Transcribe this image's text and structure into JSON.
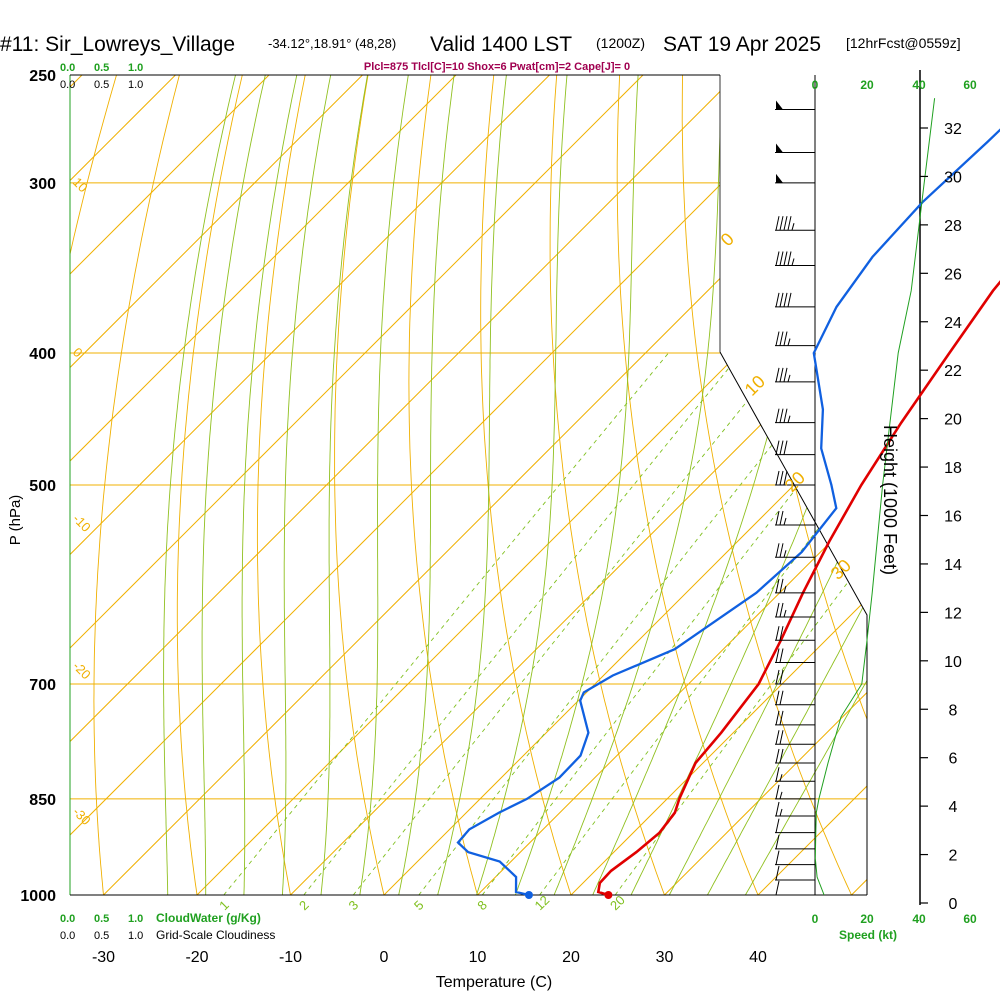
{
  "header": {
    "station": "#11: Sir_Lowreys_Village",
    "coords": "-34.12°,18.91° (48,28)",
    "valid": "Valid 1400 LST",
    "zulu": "(1200Z)",
    "date": "SAT 19 Apr 2025",
    "fcst": "[12hrFcst@0559z]",
    "params": "Plcl=875 Tlcl[C]=10 Shox=6 Pwat[cm]=2 Cape[J]= 0"
  },
  "cloud_top": {
    "v0": "0.0",
    "v1": "0.5",
    "v2": "1.0"
  },
  "cloud_top2": {
    "v0": "0.0",
    "v1": "0.5",
    "v2": "1.0"
  },
  "cloud_bottom": {
    "v0": "0.0",
    "v1": "0.5",
    "v2": "1.0",
    "label": "CloudWater (g/Kg)"
  },
  "cloud_bottom2": {
    "v0": "0.0",
    "v1": "0.5",
    "v2": "1.0",
    "label": "Grid-Scale Cloudiness"
  },
  "speed": {
    "ticks": [
      "0",
      "20",
      "40",
      "60"
    ],
    "label": "Speed (kt)"
  },
  "colors": {
    "temperature": "#e00000",
    "dewpoint": "#1060e0",
    "isobar": "#f0b000",
    "dry_adiabat": "#f0b000",
    "moist_adiabat": "#90c020",
    "mixing_ratio": "#80c020",
    "cloud": "#20a020",
    "title_params": "#a00050"
  },
  "chart_data": {
    "type": "skew-t",
    "xlabel": "Temperature (C)",
    "ylabel": "P (hPa)",
    "y2label": "Height (1000 Feet)",
    "xticks": [
      "-30",
      "-20",
      "-10",
      "0",
      "10",
      "20",
      "30",
      "40"
    ],
    "pressure_ticks": [
      "250",
      "300",
      "400",
      "500",
      "700",
      "850",
      "1000"
    ],
    "height_ticks": [
      "0",
      "2",
      "4",
      "6",
      "8",
      "10",
      "12",
      "14",
      "16",
      "18",
      "20",
      "22",
      "24",
      "26",
      "28",
      "30",
      "32"
    ],
    "dry_adiabat_labels": [
      {
        "text": "10",
        "p": 300
      },
      {
        "text": "0",
        "p": 400
      },
      {
        "text": "-10",
        "p": 530
      },
      {
        "text": "-20",
        "p": 680
      },
      {
        "text": "-30",
        "p": 870
      }
    ],
    "moist_adiabat_labels": [
      {
        "text": "0",
        "p": 330
      },
      {
        "text": "10",
        "p": 425
      },
      {
        "text": "20",
        "p": 500
      },
      {
        "text": "30",
        "p": 580
      }
    ],
    "mixing_ratio_labels": [
      "1",
      "2",
      "3",
      "5",
      "8",
      "12",
      "20"
    ],
    "temperature": [
      {
        "p": 1000,
        "t": 24.0
      },
      {
        "p": 995,
        "t": 22.6
      },
      {
        "p": 980,
        "t": 21.8
      },
      {
        "p": 960,
        "t": 21.7
      },
      {
        "p": 930,
        "t": 22.4
      },
      {
        "p": 900,
        "t": 22.8
      },
      {
        "p": 870,
        "t": 22.3
      },
      {
        "p": 850,
        "t": 21.3
      },
      {
        "p": 800,
        "t": 19.2
      },
      {
        "p": 760,
        "t": 18.7
      },
      {
        "p": 700,
        "t": 17.5
      },
      {
        "p": 650,
        "t": 15.2
      },
      {
        "p": 600,
        "t": 12.5
      },
      {
        "p": 550,
        "t": 9.8
      },
      {
        "p": 500,
        "t": 7.2
      },
      {
        "p": 450,
        "t": 4.8
      },
      {
        "p": 400,
        "t": 2.5
      },
      {
        "p": 360,
        "t": 0.5
      },
      {
        "p": 330,
        "t": -0.5
      },
      {
        "p": 300,
        "t": -1.0
      },
      {
        "p": 260,
        "t": -2.0
      }
    ],
    "dewpoint": [
      {
        "p": 1000,
        "t": 15.5
      },
      {
        "p": 995,
        "t": 13.8
      },
      {
        "p": 970,
        "t": 12.2
      },
      {
        "p": 945,
        "t": 8.8
      },
      {
        "p": 930,
        "t": 4.4
      },
      {
        "p": 915,
        "t": 2.3
      },
      {
        "p": 895,
        "t": 2.1
      },
      {
        "p": 870,
        "t": 3.5
      },
      {
        "p": 850,
        "t": 5.0
      },
      {
        "p": 820,
        "t": 6.2
      },
      {
        "p": 790,
        "t": 6.1
      },
      {
        "p": 760,
        "t": 4.5
      },
      {
        "p": 720,
        "t": 0.2
      },
      {
        "p": 710,
        "t": -0.3
      },
      {
        "p": 690,
        "t": 1.0
      },
      {
        "p": 660,
        "t": 4.8
      },
      {
        "p": 600,
        "t": 7.5
      },
      {
        "p": 560,
        "t": 8.0
      },
      {
        "p": 520,
        "t": 7.0
      },
      {
        "p": 500,
        "t": 4.0
      },
      {
        "p": 470,
        "t": -1.0
      },
      {
        "p": 440,
        "t": -5.0
      },
      {
        "p": 400,
        "t": -12.0
      },
      {
        "p": 370,
        "t": -14.5
      },
      {
        "p": 340,
        "t": -16.0
      },
      {
        "p": 310,
        "t": -16.5
      },
      {
        "p": 280,
        "t": -16.0
      },
      {
        "p": 260,
        "t": -15.8
      }
    ],
    "height_profile_kt": [
      {
        "p": 1000,
        "v": 3.5
      },
      {
        "p": 970,
        "v": 0.8
      },
      {
        "p": 940,
        "v": 0.1
      },
      {
        "p": 900,
        "v": 0.3
      },
      {
        "p": 870,
        "v": 0.5
      },
      {
        "p": 850,
        "v": 1.5
      },
      {
        "p": 800,
        "v": 5.0
      },
      {
        "p": 740,
        "v": 10.0
      },
      {
        "p": 700,
        "v": 18.0
      },
      {
        "p": 650,
        "v": 20.0
      },
      {
        "p": 600,
        "v": 22.0
      },
      {
        "p": 500,
        "v": 26.0
      },
      {
        "p": 400,
        "v": 32.0
      },
      {
        "p": 360,
        "v": 37.0
      },
      {
        "p": 300,
        "v": 42.0
      },
      {
        "p": 260,
        "v": 46.0
      }
    ],
    "wind_barbs": [
      {
        "p": 265,
        "full": 0,
        "half": 0,
        "pennant": 1
      },
      {
        "p": 285,
        "full": 0,
        "half": 0,
        "pennant": 1
      },
      {
        "p": 300,
        "full": 0,
        "half": 0,
        "pennant": 1
      },
      {
        "p": 325,
        "full": 4,
        "half": 1,
        "pennant": 0
      },
      {
        "p": 345,
        "full": 4,
        "half": 1,
        "pennant": 0
      },
      {
        "p": 370,
        "full": 4,
        "half": 0,
        "pennant": 0
      },
      {
        "p": 395,
        "full": 3,
        "half": 1,
        "pennant": 0
      },
      {
        "p": 420,
        "full": 3,
        "half": 1,
        "pennant": 0
      },
      {
        "p": 450,
        "full": 3,
        "half": 1,
        "pennant": 0
      },
      {
        "p": 475,
        "full": 3,
        "half": 0,
        "pennant": 0
      },
      {
        "p": 500,
        "full": 3,
        "half": 0,
        "pennant": 0
      },
      {
        "p": 535,
        "full": 2,
        "half": 1,
        "pennant": 0
      },
      {
        "p": 565,
        "full": 2,
        "half": 1,
        "pennant": 0
      },
      {
        "p": 600,
        "full": 2,
        "half": 1,
        "pennant": 0
      },
      {
        "p": 625,
        "full": 2,
        "half": 1,
        "pennant": 0
      },
      {
        "p": 650,
        "full": 2,
        "half": 0,
        "pennant": 0
      },
      {
        "p": 675,
        "full": 2,
        "half": 0,
        "pennant": 0
      },
      {
        "p": 700,
        "full": 2,
        "half": 0,
        "pennant": 0
      },
      {
        "p": 725,
        "full": 2,
        "half": 0,
        "pennant": 0
      },
      {
        "p": 750,
        "full": 2,
        "half": 0,
        "pennant": 0
      },
      {
        "p": 775,
        "full": 2,
        "half": 0,
        "pennant": 0
      },
      {
        "p": 800,
        "full": 2,
        "half": 0,
        "pennant": 0
      },
      {
        "p": 825,
        "full": 1,
        "half": 1,
        "pennant": 0
      },
      {
        "p": 850,
        "full": 1,
        "half": 1,
        "pennant": 0
      },
      {
        "p": 875,
        "full": 1,
        "half": 1,
        "pennant": 0
      },
      {
        "p": 900,
        "full": 1,
        "half": 0,
        "pennant": 0
      },
      {
        "p": 925,
        "full": 1,
        "half": 0,
        "pennant": 0
      },
      {
        "p": 950,
        "full": 1,
        "half": 0,
        "pennant": 0
      },
      {
        "p": 975,
        "full": 1,
        "half": 0,
        "pennant": 0
      },
      {
        "p": 1000,
        "full": 1,
        "half": 0,
        "pennant": 0
      }
    ]
  }
}
